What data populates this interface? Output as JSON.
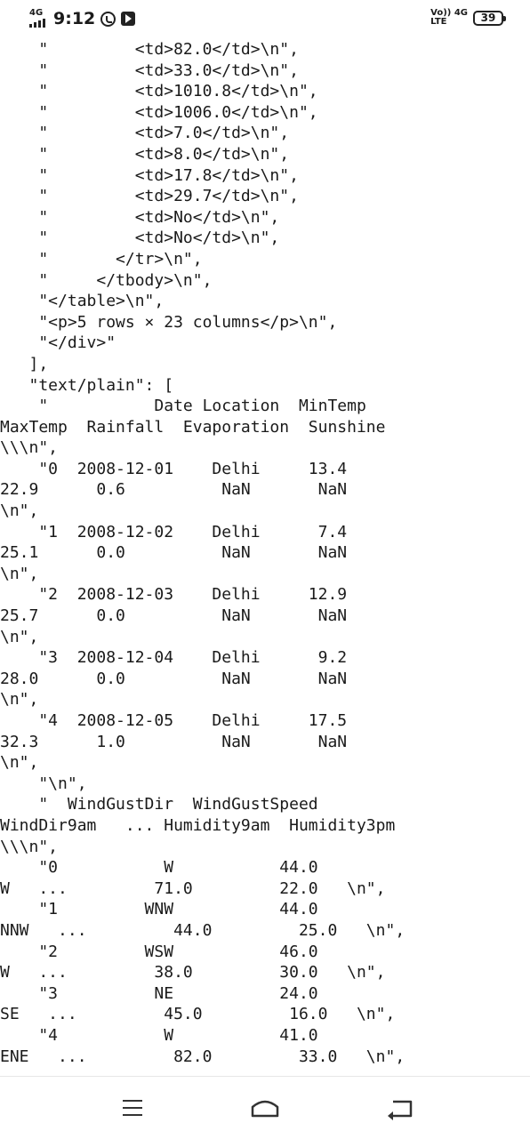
{
  "status_bar": {
    "network_label": "4G",
    "time": "9:12",
    "volte_top": "Vo)) 4G",
    "volte_bottom": "LTE",
    "battery": "39",
    "icons": [
      "signal-icon",
      "whatsapp-icon",
      "youtube-icon",
      "battery-icon"
    ]
  },
  "code_lines": [
    "    \"         <td>82.0</td>\\n\",",
    "    \"         <td>33.0</td>\\n\",",
    "    \"         <td>1010.8</td>\\n\",",
    "    \"         <td>1006.0</td>\\n\",",
    "    \"         <td>7.0</td>\\n\",",
    "    \"         <td>8.0</td>\\n\",",
    "    \"         <td>17.8</td>\\n\",",
    "    \"         <td>29.7</td>\\n\",",
    "    \"         <td>No</td>\\n\",",
    "    \"         <td>No</td>\\n\",",
    "    \"       </tr>\\n\",",
    "    \"     </tbody>\\n\",",
    "    \"</table>\\n\",",
    "    \"<p>5 rows × 23 columns</p>\\n\",",
    "    \"</div>\"",
    "   ],",
    "   \"text/plain\": [",
    "    \"           Date Location  MinTemp",
    "MaxTemp  Rainfall  Evaporation  Sunshine",
    "\\\\\\n\",",
    "    \"0  2008-12-01    Delhi     13.4",
    "22.9      0.6          NaN       NaN",
    "\\n\",",
    "    \"1  2008-12-02    Delhi      7.4",
    "25.1      0.0          NaN       NaN",
    "\\n\",",
    "    \"2  2008-12-03    Delhi     12.9",
    "25.7      0.0          NaN       NaN",
    "\\n\",",
    "    \"3  2008-12-04    Delhi      9.2",
    "28.0      0.0          NaN       NaN",
    "\\n\",",
    "    \"4  2008-12-05    Delhi     17.5",
    "32.3      1.0          NaN       NaN",
    "\\n\",",
    "    \"\\n\",",
    "    \"  WindGustDir  WindGustSpeed",
    "WindDir9am   ... Humidity9am  Humidity3pm",
    "\\\\\\n\",",
    "    \"0           W           44.0",
    "W   ...         71.0         22.0   \\n\",",
    "    \"1         WNW           44.0",
    "NNW   ...         44.0         25.0   \\n\",",
    "    \"2         WSW           46.0",
    "W   ...         38.0         30.0   \\n\",",
    "    \"3          NE           24.0",
    "SE   ...         45.0         16.0   \\n\",",
    "    \"4           W           41.0",
    "ENE   ...         82.0         33.0   \\n\","
  ],
  "nav_bar": {
    "icons": [
      "recents-icon",
      "home-icon",
      "back-icon"
    ]
  }
}
